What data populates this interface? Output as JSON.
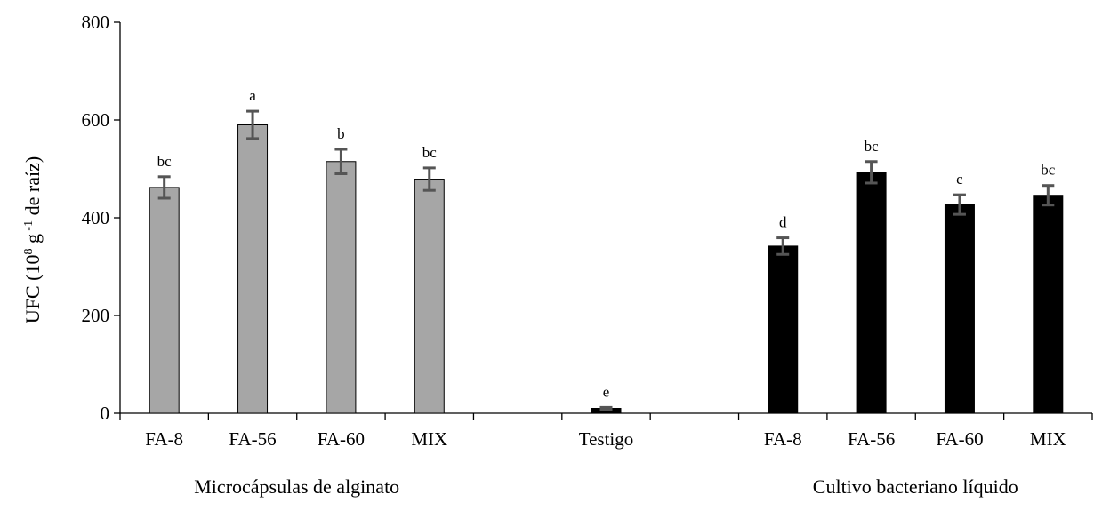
{
  "chart_data": {
    "type": "bar",
    "ylabel": "UFC  (10",
    "ylabel_sup": "8",
    "ylabel_mid": " g",
    "ylabel_sup2": " -1",
    "ylabel_end": " de raíz)",
    "ylim": [
      0,
      800
    ],
    "yticks": [
      0,
      200,
      400,
      600,
      800
    ],
    "grid": false,
    "colors": {
      "microcapsulas": "#a6a6a6",
      "cultivo": "#000000",
      "error": "#555555"
    },
    "bars": [
      {
        "category": "FA-8",
        "group": "microcapsulas",
        "value": 462,
        "error": 22,
        "letter": "bc"
      },
      {
        "category": "FA-56",
        "group": "microcapsulas",
        "value": 590,
        "error": 28,
        "letter": "a"
      },
      {
        "category": "FA-60",
        "group": "microcapsulas",
        "value": 515,
        "error": 25,
        "letter": "b"
      },
      {
        "category": "MIX",
        "group": "microcapsulas",
        "value": 479,
        "error": 23,
        "letter": "bc"
      },
      {
        "category": "Testigo",
        "group": "testigo",
        "value": 10,
        "error": 2,
        "letter": "e"
      },
      {
        "category": "FA-8",
        "group": "cultivo",
        "value": 342,
        "error": 17,
        "letter": "d"
      },
      {
        "category": "FA-56",
        "group": "cultivo",
        "value": 493,
        "error": 22,
        "letter": "bc"
      },
      {
        "category": "FA-60",
        "group": "cultivo",
        "value": 427,
        "error": 20,
        "letter": "c"
      },
      {
        "category": "MIX",
        "group": "cultivo",
        "value": 446,
        "error": 20,
        "letter": "bc"
      }
    ],
    "group_labels": {
      "microcapsulas": "Microcápsulas de alginato",
      "cultivo": "Cultivo bacteriano líquido"
    }
  }
}
